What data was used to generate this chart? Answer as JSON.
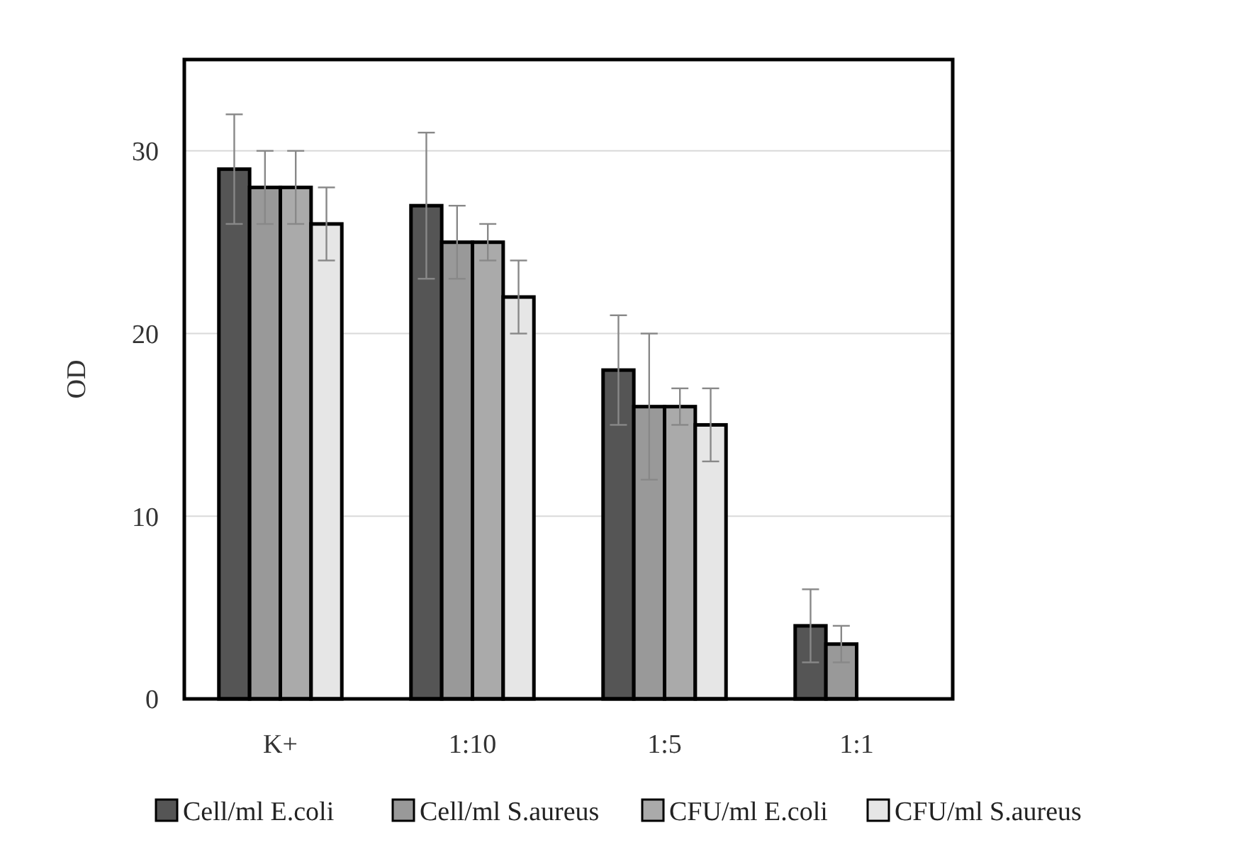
{
  "chart_data": {
    "type": "bar",
    "ylabel": "OD",
    "categories": [
      "K+",
      "1:10",
      "1:5",
      "1:1"
    ],
    "series": [
      {
        "name": "Cell/ml E.coli",
        "color": "#555555",
        "values": [
          29,
          27,
          18,
          4
        ],
        "errors": [
          3,
          4,
          3,
          2
        ]
      },
      {
        "name": "Cell/ml S.aureus",
        "color": "#999999",
        "values": [
          28,
          25,
          16,
          3
        ],
        "errors": [
          2,
          2,
          4,
          1
        ]
      },
      {
        "name": "CFU/ml E.coli",
        "color": "#aaaaaa",
        "values": [
          28,
          25,
          16,
          null
        ],
        "errors": [
          2,
          1,
          1,
          null
        ]
      },
      {
        "name": "CFU/ml S.aureus",
        "color": "#e6e6e6",
        "values": [
          26,
          22,
          15,
          null
        ],
        "errors": [
          2,
          2,
          2,
          null
        ]
      }
    ],
    "ylim": [
      0,
      35
    ],
    "yticks": [
      0,
      10,
      20,
      30
    ],
    "grid": "y",
    "legend": "bottom"
  }
}
